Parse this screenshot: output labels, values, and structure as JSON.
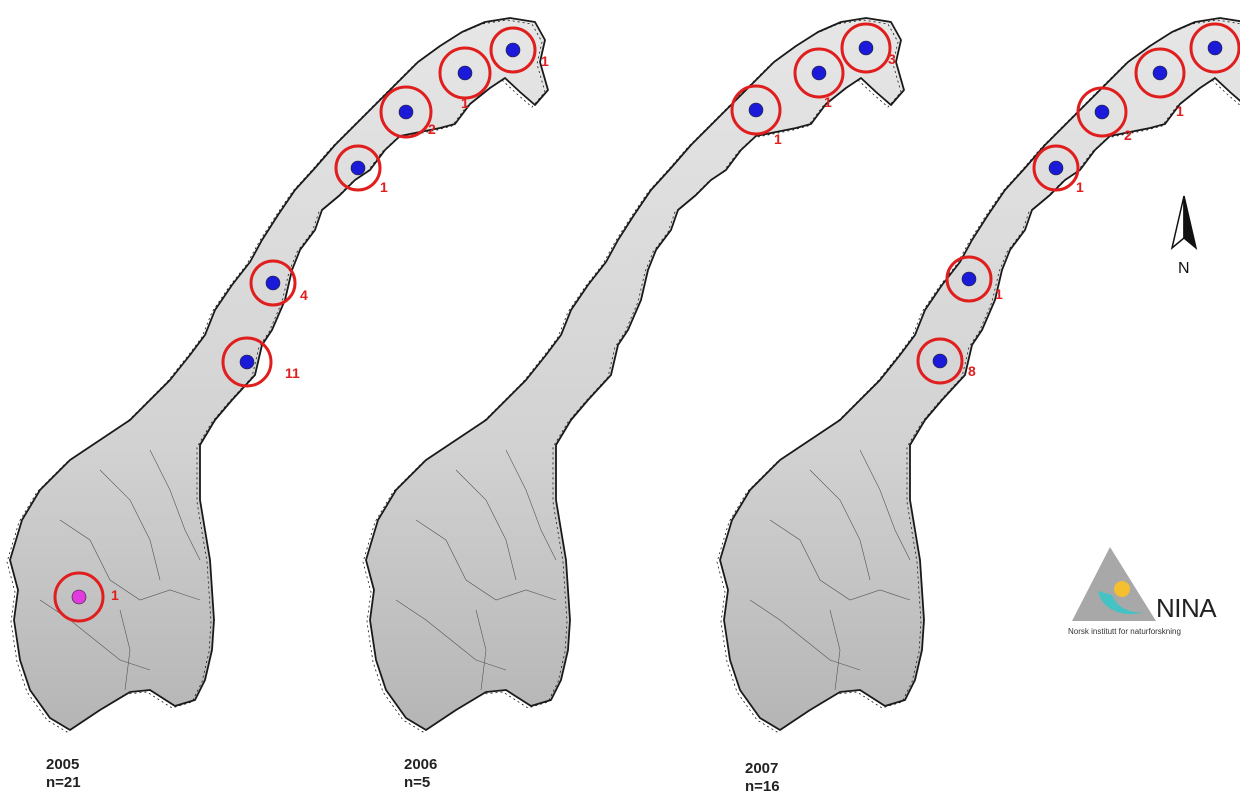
{
  "colors": {
    "land": "#dcdcdc",
    "land_dark": "#b8b8b8",
    "coast": "#1a1a1a",
    "circle": "#e01e1e",
    "label": "#e01e1e",
    "dot": "#1a1ad8",
    "dot_pink": "#e23ce0",
    "logo_grey": "#a8a8a8",
    "logo_teal": "#44c2c4",
    "logo_yellow": "#f4c030"
  },
  "maps": [
    {
      "year": "2005",
      "n": "n=21",
      "sites": [
        {
          "count": "1",
          "dot": "blue"
        },
        {
          "count": "1",
          "dot": "blue"
        },
        {
          "count": "2",
          "dot": "blue"
        },
        {
          "count": "1",
          "dot": "blue"
        },
        {
          "count": "4",
          "dot": "blue"
        },
        {
          "count": "11",
          "dot": "blue"
        },
        {
          "count": "1",
          "dot": "pink"
        }
      ]
    },
    {
      "year": "2006",
      "n": "n=5",
      "sites": [
        {
          "count": "3",
          "dot": "blue"
        },
        {
          "count": "1",
          "dot": "blue"
        },
        {
          "count": "1",
          "dot": "blue"
        }
      ]
    },
    {
      "year": "2007",
      "n": "n=16",
      "sites": [
        {
          "count": "",
          "dot": "blue"
        },
        {
          "count": "1",
          "dot": "blue"
        },
        {
          "count": "2",
          "dot": "blue"
        },
        {
          "count": "1",
          "dot": "blue"
        },
        {
          "count": "1",
          "dot": "blue"
        },
        {
          "count": "8",
          "dot": "blue"
        }
      ]
    }
  ],
  "north_arrow": {
    "label": "N"
  },
  "logo": {
    "name": "NINA",
    "subtitle": "Norsk institutt for naturforskning"
  }
}
